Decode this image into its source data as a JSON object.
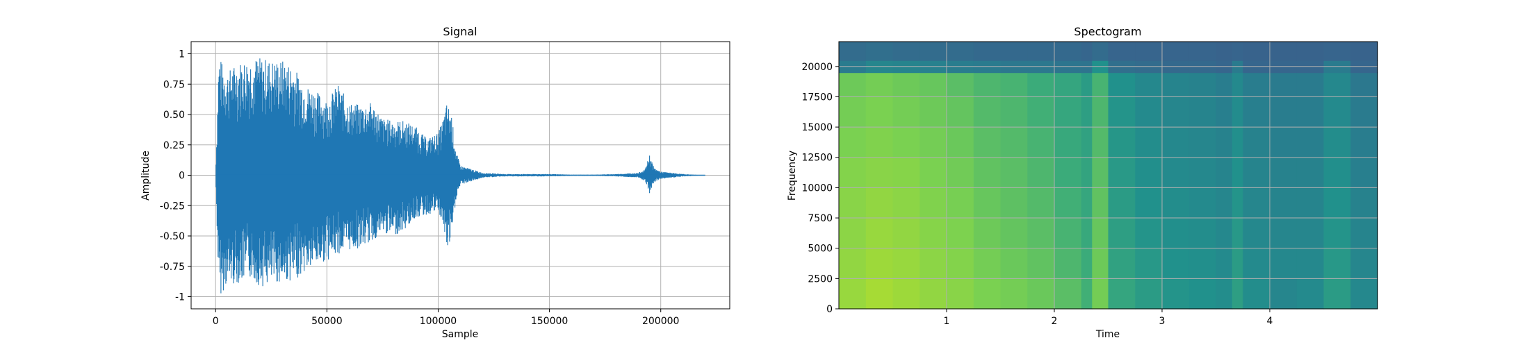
{
  "chart_data": [
    {
      "type": "line",
      "title": "Signal",
      "xlabel": "Sample",
      "ylabel": "Amplitude",
      "xlim": [
        -11000,
        231000
      ],
      "ylim": [
        -1.1,
        1.1
      ],
      "xticks": [
        0,
        50000,
        100000,
        150000,
        200000
      ],
      "yticks": [
        -1.0,
        -0.75,
        -0.5,
        -0.25,
        0.0,
        0.25,
        0.5,
        0.75,
        1.0
      ],
      "grid": true,
      "color": "#1f77b4",
      "series": [
        {
          "x": [
            0,
            1500,
            3000,
            5000,
            8000,
            12000,
            16000,
            20000,
            25000,
            30000,
            35000,
            40000,
            45000,
            50000,
            55000,
            60000,
            65000,
            70000,
            75000,
            80000,
            85000,
            90000,
            95000,
            100000,
            102000,
            104000,
            106000,
            108000,
            110000,
            115000,
            120000,
            130000,
            140000,
            150000,
            160000,
            170000,
            180000,
            190000,
            193000,
            195000,
            197000,
            200000,
            205000,
            210000,
            215000,
            220000
          ],
          "upper": [
            0.0,
            1.0,
            0.92,
            0.85,
            0.9,
            0.95,
            0.97,
            0.97,
            0.95,
            0.95,
            0.9,
            0.75,
            0.7,
            0.62,
            0.75,
            0.6,
            0.58,
            0.6,
            0.47,
            0.45,
            0.45,
            0.4,
            0.3,
            0.35,
            0.45,
            0.6,
            0.5,
            0.2,
            0.08,
            0.05,
            0.02,
            0.01,
            0.01,
            0.01,
            0.005,
            0.005,
            0.01,
            0.02,
            0.05,
            0.17,
            0.06,
            0.03,
            0.02,
            0.01,
            0.005,
            0.0
          ],
          "lower": [
            0.0,
            -1.0,
            -0.97,
            -0.9,
            -0.9,
            -0.88,
            -0.85,
            -0.92,
            -0.9,
            -0.88,
            -0.87,
            -0.8,
            -0.75,
            -0.7,
            -0.65,
            -0.62,
            -0.6,
            -0.55,
            -0.48,
            -0.5,
            -0.45,
            -0.35,
            -0.33,
            -0.3,
            -0.4,
            -0.62,
            -0.55,
            -0.2,
            -0.08,
            -0.05,
            -0.02,
            -0.01,
            -0.01,
            -0.01,
            -0.005,
            -0.005,
            -0.01,
            -0.02,
            -0.05,
            -0.16,
            -0.06,
            -0.03,
            -0.02,
            -0.01,
            -0.005,
            0.0
          ]
        }
      ]
    },
    {
      "type": "heatmap",
      "title": "Spectogram",
      "xlabel": "Time",
      "ylabel": "Frequency",
      "xlim": [
        0.0,
        5.0
      ],
      "ylim": [
        0,
        22050
      ],
      "xticks": [
        1,
        2,
        3,
        4
      ],
      "yticks": [
        0,
        2500,
        5000,
        7500,
        10000,
        12500,
        15000,
        17500,
        20000
      ],
      "grid": true,
      "colormap": [
        "#3b5d8c",
        "#2a7b8e",
        "#21918c",
        "#3bab7a",
        "#7ad151",
        "#b5de2b"
      ],
      "time_bins": [
        0.0,
        0.25,
        0.5,
        0.75,
        1.0,
        1.25,
        1.5,
        1.75,
        2.0,
        2.25,
        2.35,
        2.5,
        2.75,
        3.0,
        3.25,
        3.5,
        3.65,
        3.75,
        4.0,
        4.25,
        4.5,
        4.75
      ],
      "freq_bins": [
        0,
        2500,
        5000,
        7500,
        10000,
        12500,
        15000,
        17500,
        19500,
        20500
      ],
      "intensity": [
        [
          0.9,
          0.88,
          0.86,
          0.85,
          0.83,
          0.8,
          0.78,
          0.76,
          0.2,
          0.1
        ],
        [
          0.95,
          0.92,
          0.9,
          0.88,
          0.85,
          0.82,
          0.8,
          0.78,
          0.3,
          0.12
        ],
        [
          0.92,
          0.9,
          0.88,
          0.86,
          0.84,
          0.8,
          0.78,
          0.76,
          0.28,
          0.1
        ],
        [
          0.88,
          0.86,
          0.84,
          0.82,
          0.8,
          0.78,
          0.76,
          0.74,
          0.25,
          0.1
        ],
        [
          0.85,
          0.83,
          0.81,
          0.79,
          0.77,
          0.75,
          0.73,
          0.7,
          0.22,
          0.1
        ],
        [
          0.8,
          0.78,
          0.76,
          0.74,
          0.72,
          0.7,
          0.68,
          0.66,
          0.2,
          0.08
        ],
        [
          0.78,
          0.75,
          0.73,
          0.71,
          0.7,
          0.68,
          0.66,
          0.64,
          0.18,
          0.08
        ],
        [
          0.75,
          0.72,
          0.7,
          0.68,
          0.66,
          0.64,
          0.62,
          0.6,
          0.18,
          0.08
        ],
        [
          0.7,
          0.66,
          0.64,
          0.62,
          0.6,
          0.58,
          0.56,
          0.55,
          0.16,
          0.08
        ],
        [
          0.62,
          0.6,
          0.58,
          0.56,
          0.54,
          0.52,
          0.5,
          0.48,
          0.15,
          0.06
        ],
        [
          0.78,
          0.76,
          0.74,
          0.72,
          0.7,
          0.68,
          0.66,
          0.64,
          0.4,
          0.1
        ],
        [
          0.55,
          0.52,
          0.5,
          0.48,
          0.46,
          0.44,
          0.42,
          0.4,
          0.12,
          0.05
        ],
        [
          0.48,
          0.45,
          0.42,
          0.4,
          0.38,
          0.36,
          0.34,
          0.32,
          0.1,
          0.05
        ],
        [
          0.42,
          0.4,
          0.38,
          0.36,
          0.34,
          0.32,
          0.3,
          0.28,
          0.08,
          0.05
        ],
        [
          0.4,
          0.38,
          0.36,
          0.34,
          0.32,
          0.3,
          0.28,
          0.26,
          0.08,
          0.05
        ],
        [
          0.36,
          0.34,
          0.32,
          0.3,
          0.28,
          0.26,
          0.24,
          0.22,
          0.06,
          0.04
        ],
        [
          0.5,
          0.48,
          0.45,
          0.42,
          0.4,
          0.38,
          0.35,
          0.33,
          0.2,
          0.05
        ],
        [
          0.36,
          0.34,
          0.32,
          0.3,
          0.28,
          0.26,
          0.24,
          0.22,
          0.06,
          0.04
        ],
        [
          0.3,
          0.32,
          0.3,
          0.28,
          0.26,
          0.24,
          0.22,
          0.2,
          0.06,
          0.04
        ],
        [
          0.34,
          0.32,
          0.3,
          0.28,
          0.26,
          0.24,
          0.22,
          0.2,
          0.06,
          0.04
        ],
        [
          0.48,
          0.45,
          0.42,
          0.4,
          0.38,
          0.36,
          0.34,
          0.32,
          0.2,
          0.05
        ],
        [
          0.32,
          0.3,
          0.28,
          0.26,
          0.24,
          0.22,
          0.2,
          0.18,
          0.06,
          0.04
        ]
      ]
    }
  ]
}
